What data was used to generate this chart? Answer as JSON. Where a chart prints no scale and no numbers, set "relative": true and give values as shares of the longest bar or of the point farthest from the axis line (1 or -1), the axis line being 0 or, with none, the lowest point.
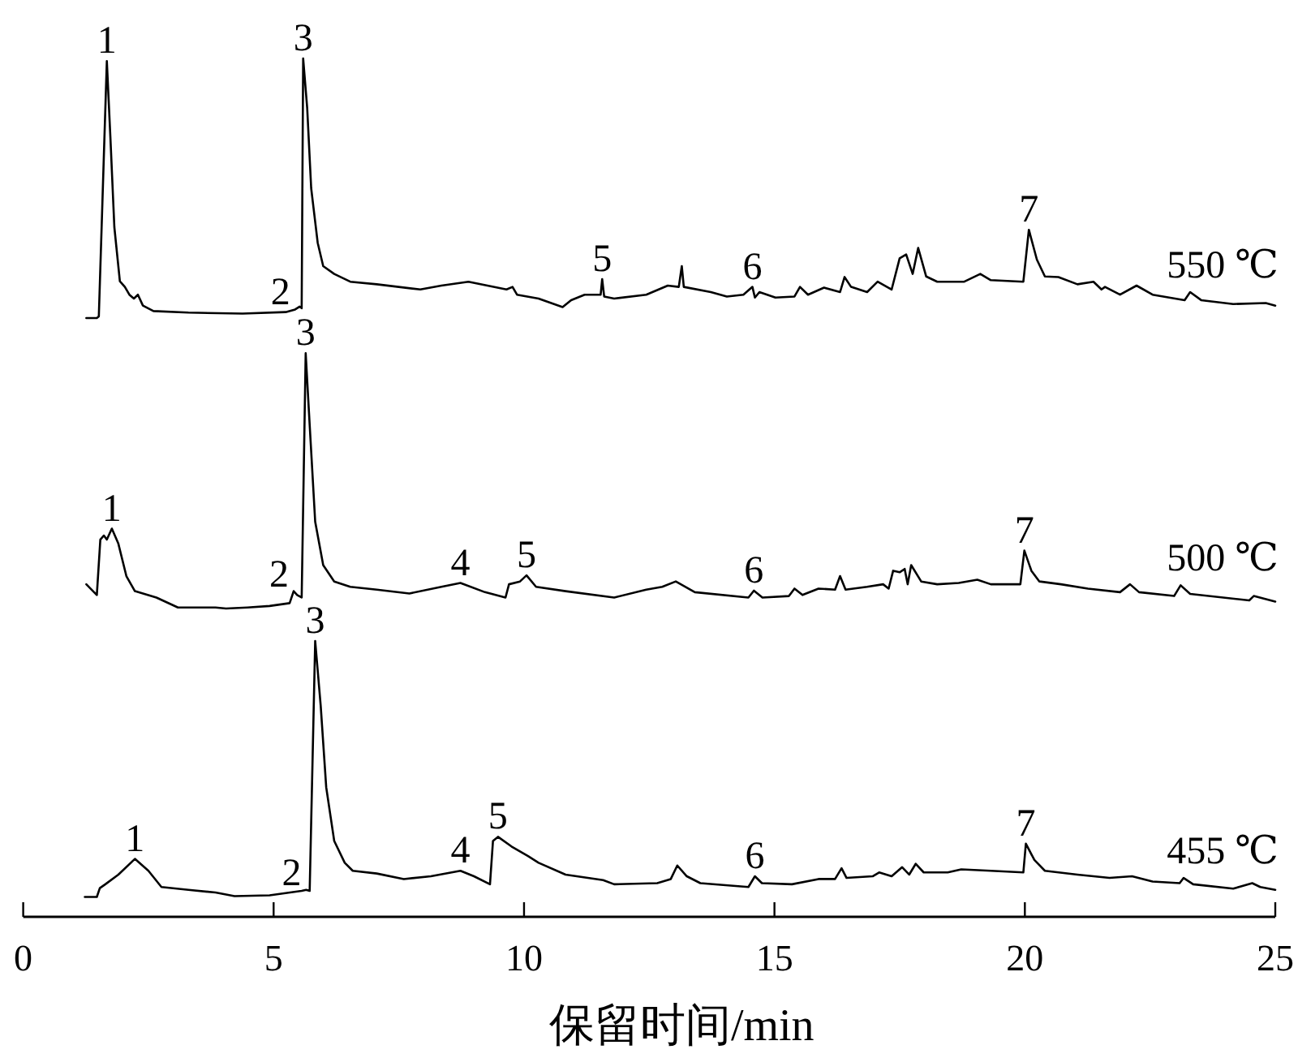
{
  "chart_data": [
    {
      "type": "line",
      "relative": true,
      "xlim": [
        0,
        25
      ],
      "tick_labels": false,
      "x": [
        1.26,
        1.47,
        1.51,
        1.67,
        1.74,
        1.82,
        1.93,
        2.03,
        2.12,
        2.21,
        2.29,
        2.39,
        2.6,
        3.3,
        4.38,
        5.24,
        5.43,
        5.52,
        5.56,
        5.59,
        5.67,
        5.75,
        5.88,
        5.99,
        6.21,
        6.53,
        7.06,
        7.93,
        8.35,
        8.89,
        9.65,
        9.77,
        9.86,
        10.29,
        10.77,
        10.94,
        11.21,
        11.53,
        11.56,
        11.6,
        11.8,
        12.44,
        12.87,
        13.09,
        13.15,
        13.19,
        13.73,
        14.05,
        14.38,
        14.56,
        14.61,
        14.7,
        15.02,
        15.4,
        15.51,
        15.67,
        15.99,
        16.31,
        16.4,
        16.53,
        16.85,
        17.06,
        17.34,
        17.5,
        17.63,
        17.76,
        17.87,
        18.03,
        18.25,
        18.79,
        19.11,
        19.32,
        19.97,
        20.08,
        20.24,
        20.4,
        20.67,
        21.05,
        21.37,
        21.53,
        21.6,
        21.9,
        22.23,
        22.55,
        23.19,
        23.3,
        23.52,
        24.16,
        24.81,
        25.0
      ],
      "series": [
        {
          "name": "550 ℃",
          "color": "#000000",
          "values": [
            0,
            0,
            0.006,
            0.99,
            0.7,
            0.35,
            0.142,
            0.12,
            0.09,
            0.075,
            0.09,
            0.048,
            0.027,
            0.021,
            0.017,
            0.023,
            0.033,
            0.044,
            0.038,
            1.0,
            0.81,
            0.5,
            0.29,
            0.2,
            0.17,
            0.14,
            0.13,
            0.11,
            0.125,
            0.14,
            0.11,
            0.12,
            0.09,
            0.075,
            0.042,
            0.069,
            0.09,
            0.09,
            0.15,
            0.083,
            0.075,
            0.09,
            0.125,
            0.12,
            0.2,
            0.12,
            0.1,
            0.083,
            0.09,
            0.12,
            0.079,
            0.1,
            0.079,
            0.083,
            0.12,
            0.09,
            0.117,
            0.1,
            0.158,
            0.12,
            0.1,
            0.14,
            0.11,
            0.23,
            0.245,
            0.17,
            0.27,
            0.16,
            0.14,
            0.14,
            0.17,
            0.146,
            0.14,
            0.34,
            0.225,
            0.16,
            0.158,
            0.13,
            0.14,
            0.11,
            0.12,
            0.09,
            0.125,
            0.09,
            0.069,
            0.1,
            0.069,
            0.054,
            0.058,
            0.048
          ]
        }
      ],
      "annotations": [
        {
          "text": "1",
          "x": 1.67,
          "y": 0.99
        },
        {
          "text": "2",
          "x": 5.43,
          "y": 0.033
        },
        {
          "text": "3",
          "x": 5.59,
          "y": 1.0
        },
        {
          "text": "5",
          "x": 11.56,
          "y": 0.15
        },
        {
          "text": "6",
          "x": 14.56,
          "y": 0.12
        },
        {
          "text": "7",
          "x": 20.08,
          "y": 0.34
        }
      ]
    },
    {
      "type": "line",
      "relative": true,
      "xlim": [
        0,
        25
      ],
      "tick_labels": false,
      "x": [
        1.26,
        1.47,
        1.54,
        1.61,
        1.67,
        1.77,
        1.9,
        2.06,
        2.23,
        2.66,
        3.09,
        3.84,
        4.05,
        4.48,
        4.92,
        5.32,
        5.4,
        5.47,
        5.56,
        5.64,
        5.72,
        5.83,
        5.99,
        6.21,
        6.53,
        7.06,
        7.71,
        8.35,
        8.73,
        9.22,
        9.63,
        9.7,
        9.92,
        10.05,
        10.24,
        10.83,
        11.8,
        12.44,
        12.76,
        13.03,
        13.41,
        14.48,
        14.59,
        14.76,
        15.29,
        15.4,
        15.56,
        15.88,
        16.21,
        16.31,
        16.42,
        16.85,
        17.17,
        17.28,
        17.37,
        17.5,
        17.6,
        17.66,
        17.73,
        17.93,
        18.25,
        18.68,
        19.05,
        19.32,
        19.91,
        19.99,
        20.13,
        20.29,
        20.72,
        21.26,
        21.9,
        22.1,
        22.28,
        22.98,
        23.11,
        23.3,
        24.48,
        24.57,
        25.0
      ],
      "series": [
        {
          "name": "500 ℃",
          "color": "#000000",
          "values": [
            0.095,
            0.053,
            0.27,
            0.286,
            0.27,
            0.313,
            0.254,
            0.127,
            0.068,
            0.043,
            0.004,
            0.004,
            0,
            0.004,
            0.01,
            0.021,
            0.068,
            0.053,
            0.043,
            1.0,
            0.72,
            0.34,
            0.17,
            0.106,
            0.085,
            0.074,
            0.059,
            0.085,
            0.1,
            0.064,
            0.043,
            0.095,
            0.106,
            0.13,
            0.085,
            0.068,
            0.043,
            0.074,
            0.085,
            0.106,
            0.064,
            0.043,
            0.07,
            0.043,
            0.049,
            0.078,
            0.053,
            0.078,
            0.074,
            0.127,
            0.074,
            0.085,
            0.095,
            0.078,
            0.148,
            0.142,
            0.155,
            0.095,
            0.17,
            0.106,
            0.095,
            0.1,
            0.113,
            0.095,
            0.095,
            0.227,
            0.148,
            0.106,
            0.095,
            0.078,
            0.064,
            0.095,
            0.064,
            0.049,
            0.091,
            0.057,
            0.032,
            0.049,
            0.027
          ]
        }
      ],
      "annotations": [
        {
          "text": "1",
          "x": 1.77,
          "y": 0.313
        },
        {
          "text": "2",
          "x": 5.4,
          "y": 0.068
        },
        {
          "text": "3",
          "x": 5.64,
          "y": 1.0
        },
        {
          "text": "4",
          "x": 8.73,
          "y": 0.1
        },
        {
          "text": "5",
          "x": 10.05,
          "y": 0.13
        },
        {
          "text": "6",
          "x": 14.59,
          "y": 0.07
        },
        {
          "text": "7",
          "x": 19.99,
          "y": 0.227
        }
      ]
    },
    {
      "type": "line",
      "relative": true,
      "xlim": [
        0,
        25
      ],
      "xticks": [
        0,
        5,
        10,
        15,
        20,
        25
      ],
      "xlabel": "保留时间/min",
      "x": [
        1.23,
        1.47,
        1.53,
        1.64,
        1.9,
        2.23,
        2.5,
        2.76,
        3.3,
        3.84,
        4.22,
        4.92,
        5.56,
        5.65,
        5.72,
        5.83,
        5.94,
        6.05,
        6.21,
        6.42,
        6.58,
        7.06,
        7.6,
        8.14,
        8.73,
        9.0,
        9.32,
        9.38,
        9.48,
        9.75,
        10.08,
        10.29,
        10.83,
        11.58,
        11.8,
        12.66,
        12.93,
        13.06,
        13.25,
        13.52,
        14.48,
        14.61,
        14.75,
        15.35,
        15.88,
        16.21,
        16.34,
        16.44,
        16.96,
        17.09,
        17.34,
        17.55,
        17.69,
        17.82,
        17.98,
        18.46,
        18.73,
        19.32,
        19.97,
        20.02,
        20.19,
        20.4,
        21.05,
        21.69,
        22.14,
        22.55,
        23.09,
        23.17,
        23.36,
        24.16,
        24.54,
        24.7,
        25.0
      ],
      "series": [
        {
          "name": "455 ℃",
          "color": "#000000",
          "values": [
            0.072,
            0.072,
            0.104,
            0.118,
            0.153,
            0.21,
            0.167,
            0.108,
            0.098,
            0.088,
            0.075,
            0.078,
            0.094,
            0.098,
            0.094,
            1.0,
            0.765,
            0.47,
            0.275,
            0.196,
            0.167,
            0.157,
            0.137,
            0.147,
            0.167,
            0.147,
            0.118,
            0.275,
            0.29,
            0.255,
            0.22,
            0.196,
            0.153,
            0.133,
            0.118,
            0.122,
            0.137,
            0.186,
            0.147,
            0.122,
            0.108,
            0.147,
            0.122,
            0.118,
            0.137,
            0.137,
            0.176,
            0.141,
            0.147,
            0.161,
            0.147,
            0.18,
            0.153,
            0.192,
            0.161,
            0.161,
            0.172,
            0.167,
            0.161,
            0.265,
            0.206,
            0.167,
            0.153,
            0.141,
            0.147,
            0.128,
            0.122,
            0.141,
            0.118,
            0.102,
            0.122,
            0.108,
            0.098
          ]
        }
      ],
      "annotations": [
        {
          "text": "1",
          "x": 2.23,
          "y": 0.21
        },
        {
          "text": "2",
          "x": 5.65,
          "y": 0.098
        },
        {
          "text": "3",
          "x": 5.83,
          "y": 1.0
        },
        {
          "text": "4",
          "x": 8.73,
          "y": 0.167
        },
        {
          "text": "5",
          "x": 9.48,
          "y": 0.29
        },
        {
          "text": "6",
          "x": 14.61,
          "y": 0.147
        },
        {
          "text": "7",
          "x": 20.02,
          "y": 0.265
        }
      ]
    }
  ]
}
